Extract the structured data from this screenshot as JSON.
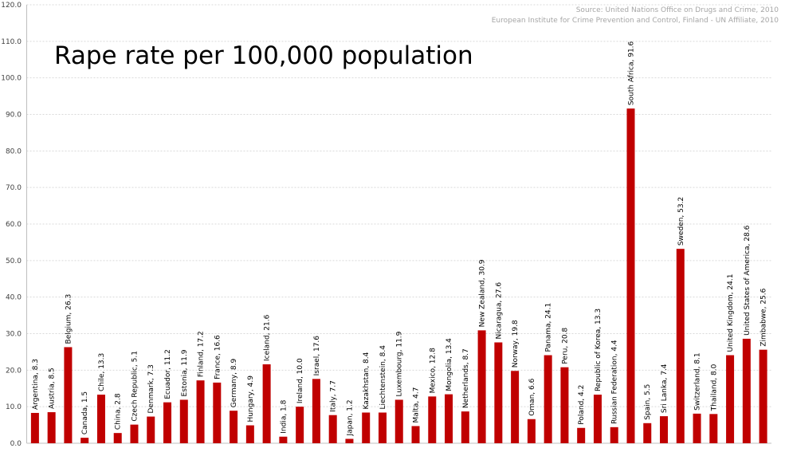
{
  "chart_data": {
    "type": "bar",
    "title": "Rape rate per 100,000 population",
    "source_lines": [
      "Source: United Nations Office on Drugs and Crime, 2010",
      "European Institute for Crime Prevention and Control, Finland - UN Affiliate, 2010"
    ],
    "xlabel": "",
    "ylabel": "",
    "ylim": [
      0,
      120
    ],
    "ytick_step": 10,
    "grid": true,
    "bar_color": "#c00000",
    "categories": [
      "Argentina",
      "Austria",
      "Belgium",
      "Canada",
      "Chile",
      "China",
      "Czech Republic",
      "Denmark",
      "Ecuador",
      "Estonia",
      "Finland",
      "France",
      "Germany",
      "Hungary",
      "Iceland",
      "India",
      "Ireland",
      "Israel",
      "Italy",
      "Japan",
      "Kazakhstan",
      "Liechtenstein",
      "Luxembourg",
      "Malta",
      "Mexico",
      "Mongolia",
      "Netherlands",
      "New Zealand",
      "Nicaragua",
      "Norway",
      "Oman",
      "Panama",
      "Peru",
      "Poland",
      "Republic of Korea",
      "Russian Federation",
      "South Africa",
      "Spain",
      "Sri Lanka",
      "Sweden",
      "Switzerland",
      "Thailand",
      "United Kingdom",
      "United States of America",
      "Zimbabwe"
    ],
    "values": [
      8.3,
      8.5,
      26.3,
      1.5,
      13.3,
      2.8,
      5.1,
      7.3,
      11.2,
      11.9,
      17.2,
      16.6,
      8.9,
      4.9,
      21.6,
      1.8,
      10.0,
      17.6,
      7.7,
      1.2,
      8.4,
      8.4,
      11.9,
      4.7,
      12.8,
      13.4,
      8.7,
      30.9,
      27.6,
      19.8,
      6.6,
      24.1,
      20.8,
      4.2,
      13.3,
      4.4,
      91.6,
      5.5,
      7.4,
      53.2,
      8.1,
      8.0,
      24.1,
      28.6,
      25.6
    ]
  }
}
